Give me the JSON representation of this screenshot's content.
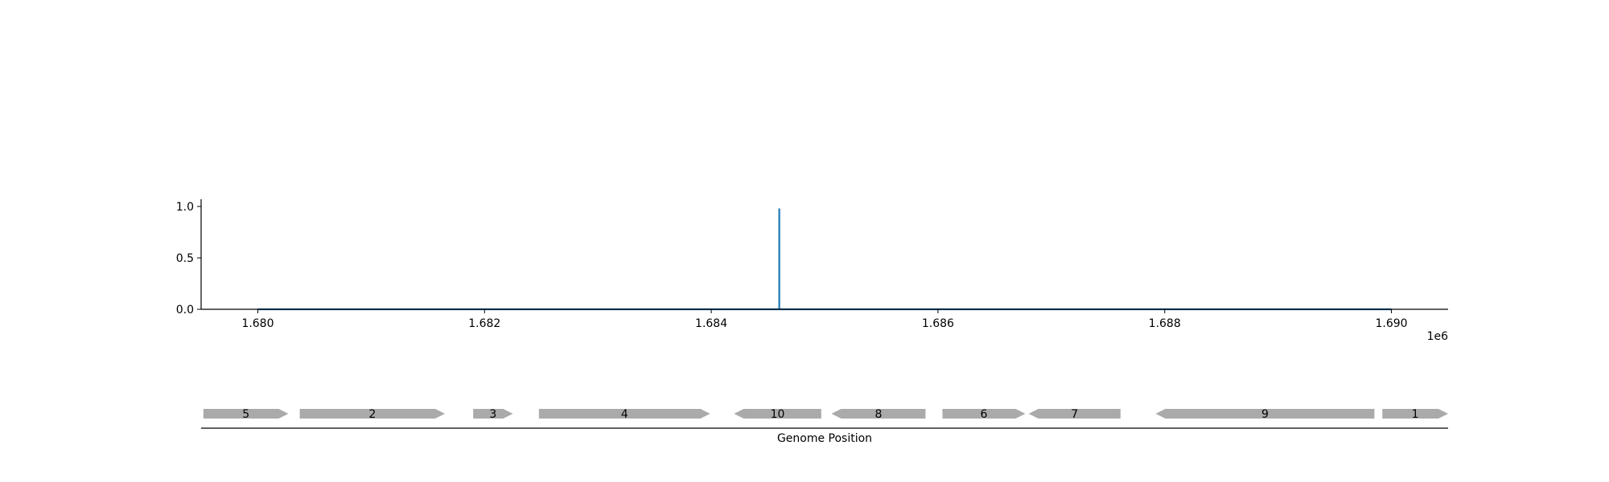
{
  "chart_data": [
    {
      "type": "line",
      "x_multiplier_label": "1e6",
      "x_tick_labels": [
        "1.680",
        "1.682",
        "1.684",
        "1.686",
        "1.688",
        "1.690"
      ],
      "x_ticks": [
        1680000,
        1682000,
        1684000,
        1686000,
        1688000,
        1690000
      ],
      "y_tick_labels": [
        "0.0",
        "0.5",
        "1.0"
      ],
      "y_ticks": [
        0,
        0.5,
        1.0
      ],
      "xlim": [
        1679500,
        1690500
      ],
      "ylim": [
        0,
        1.07
      ],
      "grid": false,
      "series": [
        {
          "color": "#1f77b4",
          "x": [
            1680000,
            1684600,
            1684600,
            1684600,
            1690000
          ],
          "y": [
            0,
            0,
            0.98,
            0,
            0
          ]
        }
      ]
    },
    {
      "type": "gene_track",
      "xlabel": "Genome Position",
      "xlim": [
        1679500,
        1690500
      ],
      "gene_color": "#aaaaaa",
      "genes": [
        {
          "label": "5",
          "start": 1679520,
          "end": 1680270,
          "strand": "+"
        },
        {
          "label": "2",
          "start": 1680370,
          "end": 1681650,
          "strand": "+"
        },
        {
          "label": "3",
          "start": 1681900,
          "end": 1682250,
          "strand": "+"
        },
        {
          "label": "4",
          "start": 1682480,
          "end": 1683990,
          "strand": "+"
        },
        {
          "label": "10",
          "start": 1684200,
          "end": 1684970,
          "strand": "-"
        },
        {
          "label": "8",
          "start": 1685060,
          "end": 1685890,
          "strand": "-"
        },
        {
          "label": "6",
          "start": 1686040,
          "end": 1686770,
          "strand": "+"
        },
        {
          "label": "7",
          "start": 1686800,
          "end": 1687610,
          "strand": "-"
        },
        {
          "label": "9",
          "start": 1687920,
          "end": 1689850,
          "strand": "-"
        },
        {
          "label": "1",
          "start": 1689920,
          "end": 1690500,
          "strand": "+"
        }
      ]
    }
  ]
}
